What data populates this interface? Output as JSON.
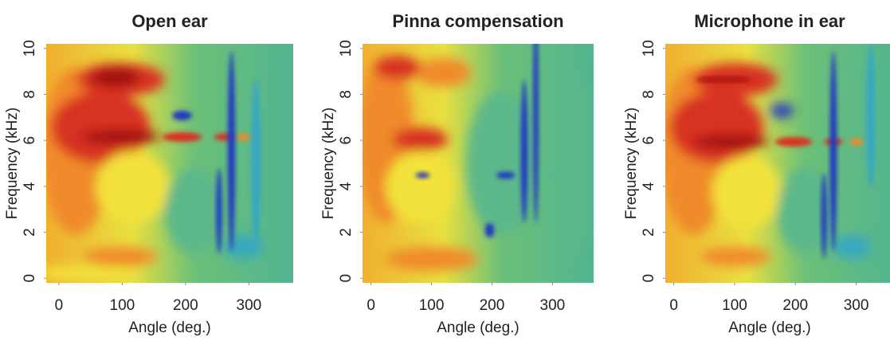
{
  "chart_data": [
    {
      "type": "heatmap",
      "title": "Open ear",
      "xlabel": "Angle (deg.)",
      "ylabel": "Frequency (kHz)",
      "xlim": [
        -20,
        370
      ],
      "xticks": [
        0,
        100,
        200,
        300
      ],
      "ylim": [
        -0.2,
        10.2
      ],
      "yticks": [
        0,
        2,
        4,
        6,
        8,
        10
      ]
    },
    {
      "type": "heatmap",
      "title": "Pinna compensation",
      "xlabel": "Angle (deg.)",
      "ylabel": "Frequency (kHz)",
      "xlim": [
        -14,
        368
      ],
      "xticks": [
        0,
        100,
        200,
        300
      ],
      "ylim": [
        -0.2,
        10.2
      ],
      "yticks": [
        0,
        2,
        4,
        6,
        8,
        10
      ]
    },
    {
      "type": "heatmap",
      "title": "Microphone in ear",
      "xlabel": "Angle (deg.)",
      "ylabel": "Frequency (kHz)",
      "xlim": [
        -14,
        370
      ],
      "xticks": [
        0,
        100,
        200,
        300
      ],
      "ylim": [
        -0.2,
        10.2
      ],
      "yticks": [
        0,
        2,
        4,
        6,
        8,
        10
      ]
    }
  ]
}
